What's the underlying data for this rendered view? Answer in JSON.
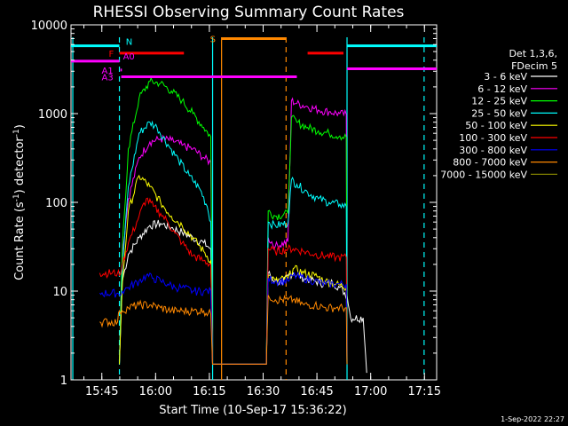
{
  "chart_data": {
    "type": "line",
    "title": "RHESSI Observing Summary Count Rates",
    "xlabel": "Start Time (10-Sep-17 15:36:22)",
    "ylabel": "Count Rate (s⁻¹ detector⁻¹)",
    "ylabel_main": "Count Rate (s",
    "ylabel_mid": ") detector",
    "ylabel_end": ")",
    "ylabel_exp": "-1",
    "x_unit": "minutes after 15:36:22",
    "xlim": [
      0,
      102
    ],
    "ylim": [
      1,
      10000
    ],
    "yscale": "log",
    "x_ticks": [
      {
        "label": "15:45",
        "value": 8.6
      },
      {
        "label": "16:00",
        "value": 23.6
      },
      {
        "label": "16:15",
        "value": 38.6
      },
      {
        "label": "16:30",
        "value": 53.6
      },
      {
        "label": "16:45",
        "value": 68.6
      },
      {
        "label": "17:00",
        "value": 83.6
      },
      {
        "label": "17:15",
        "value": 98.6
      }
    ],
    "y_ticks": [
      {
        "label": "1",
        "value": 1
      },
      {
        "label": "10",
        "value": 10
      },
      {
        "label": "100",
        "value": 100
      },
      {
        "label": "1000",
        "value": 1000
      },
      {
        "label": "10000",
        "value": 10000
      }
    ],
    "legend": {
      "header1": "Det 1,3,6,",
      "header2": "FDecim 5",
      "position": "right"
    },
    "series": [
      {
        "name": "3 - 6 keV",
        "color": "#ffffff",
        "points": [
          [
            13.5,
            1.5
          ],
          [
            14.3,
            13
          ],
          [
            16,
            26
          ],
          [
            19,
            40
          ],
          [
            22,
            55
          ],
          [
            25,
            58
          ],
          [
            28,
            52
          ],
          [
            31,
            46
          ],
          [
            34,
            40
          ],
          [
            37,
            35
          ],
          [
            39,
            30
          ],
          [
            39.5,
            1.5
          ],
          [
            54.5,
            1.5
          ],
          [
            55,
            16
          ],
          [
            57,
            13
          ],
          [
            59,
            12
          ],
          [
            60.5,
            15
          ],
          [
            62,
            16
          ],
          [
            65,
            14
          ],
          [
            68,
            13
          ],
          [
            71,
            12
          ],
          [
            73,
            12.5
          ],
          [
            75,
            11
          ],
          [
            77,
            9
          ],
          [
            78,
            5
          ],
          [
            81.5,
            5
          ],
          [
            82.5,
            1.2
          ]
        ]
      },
      {
        "name": "6 - 12 keV",
        "color": "#ff00ff",
        "points": [
          [
            13.5,
            1.5
          ],
          [
            14.3,
            26
          ],
          [
            16,
            110
          ],
          [
            19,
            320
          ],
          [
            22,
            480
          ],
          [
            25,
            520
          ],
          [
            28,
            500
          ],
          [
            31,
            440
          ],
          [
            34,
            400
          ],
          [
            37,
            320
          ],
          [
            39,
            280
          ],
          [
            39.5,
            1.5
          ],
          [
            54.5,
            1.5
          ],
          [
            55,
            40
          ],
          [
            57,
            32
          ],
          [
            60.5,
            36
          ],
          [
            61.5,
            1400
          ],
          [
            63,
            1300
          ],
          [
            66,
            1200
          ],
          [
            69,
            1100
          ],
          [
            72,
            1050
          ],
          [
            75,
            1000
          ],
          [
            76.8,
            980
          ],
          [
            77,
            1.5
          ]
        ]
      },
      {
        "name": "12 - 25 keV",
        "color": "#00ff00",
        "points": [
          [
            13.5,
            1.5
          ],
          [
            14.3,
            30
          ],
          [
            16,
            400
          ],
          [
            19,
            1500
          ],
          [
            22,
            2300
          ],
          [
            25,
            2200
          ],
          [
            28,
            1800
          ],
          [
            31,
            1400
          ],
          [
            34,
            1000
          ],
          [
            37,
            700
          ],
          [
            39,
            550
          ],
          [
            39.5,
            1.5
          ],
          [
            54.5,
            1.5
          ],
          [
            55,
            80
          ],
          [
            57,
            70
          ],
          [
            60.5,
            75
          ],
          [
            61.5,
            900
          ],
          [
            63,
            800
          ],
          [
            66,
            700
          ],
          [
            69,
            640
          ],
          [
            72,
            600
          ],
          [
            75,
            560
          ],
          [
            76.8,
            540
          ],
          [
            77,
            1.5
          ]
        ]
      },
      {
        "name": "25 - 50 keV",
        "color": "#00ffff",
        "points": [
          [
            13.5,
            1.5
          ],
          [
            14.3,
            18
          ],
          [
            16,
            150
          ],
          [
            19,
            600
          ],
          [
            22,
            800
          ],
          [
            24,
            700
          ],
          [
            27,
            450
          ],
          [
            30,
            300
          ],
          [
            33,
            200
          ],
          [
            36,
            140
          ],
          [
            38,
            90
          ],
          [
            39,
            60
          ],
          [
            39.5,
            1.5
          ],
          [
            54.5,
            1.5
          ],
          [
            55,
            60
          ],
          [
            57,
            55
          ],
          [
            60.5,
            58
          ],
          [
            61.5,
            180
          ],
          [
            63,
            160
          ],
          [
            66,
            130
          ],
          [
            69,
            110
          ],
          [
            72,
            100
          ],
          [
            75,
            95
          ],
          [
            76.8,
            90
          ],
          [
            77,
            1.5
          ]
        ]
      },
      {
        "name": "50 - 100 keV",
        "color": "#ffff00",
        "points": [
          [
            13.5,
            1.5
          ],
          [
            14.3,
            12
          ],
          [
            16,
            80
          ],
          [
            19,
            200
          ],
          [
            22,
            150
          ],
          [
            25,
            100
          ],
          [
            28,
            70
          ],
          [
            31,
            55
          ],
          [
            34,
            40
          ],
          [
            37,
            28
          ],
          [
            39,
            22
          ],
          [
            39.5,
            1.5
          ],
          [
            54.5,
            1.5
          ],
          [
            55,
            15
          ],
          [
            57,
            13
          ],
          [
            60.5,
            14
          ],
          [
            62,
            18
          ],
          [
            65,
            16
          ],
          [
            68,
            15
          ],
          [
            71,
            13
          ],
          [
            74,
            12
          ],
          [
            76.8,
            11
          ],
          [
            77,
            1.5
          ]
        ]
      },
      {
        "name": "100 - 300 keV",
        "color": "#ff0000",
        "points": [
          [
            8,
            16
          ],
          [
            13,
            16
          ],
          [
            13.5,
            15
          ],
          [
            14.3,
            20
          ],
          [
            16,
            35
          ],
          [
            19,
            70
          ],
          [
            21,
            110
          ],
          [
            23,
            90
          ],
          [
            25,
            75
          ],
          [
            27,
            60
          ],
          [
            29,
            45
          ],
          [
            31,
            35
          ],
          [
            34,
            25
          ],
          [
            37,
            22
          ],
          [
            39,
            20
          ],
          [
            39.5,
            1.5
          ],
          [
            54.5,
            1.5
          ],
          [
            55,
            30
          ],
          [
            57,
            28
          ],
          [
            60.5,
            30
          ],
          [
            62,
            30
          ],
          [
            65,
            28
          ],
          [
            68,
            26
          ],
          [
            71,
            25
          ],
          [
            74,
            24
          ],
          [
            76.8,
            24
          ],
          [
            77,
            1.5
          ]
        ]
      },
      {
        "name": "300 - 800 keV",
        "color": "#0000ff",
        "points": [
          [
            8,
            9.5
          ],
          [
            13,
            9.5
          ],
          [
            13.5,
            9
          ],
          [
            14.3,
            10
          ],
          [
            16,
            11
          ],
          [
            19,
            13
          ],
          [
            21,
            15
          ],
          [
            23,
            14
          ],
          [
            25,
            13
          ],
          [
            27,
            12
          ],
          [
            29,
            11
          ],
          [
            31,
            11
          ],
          [
            34,
            10
          ],
          [
            37,
            10
          ],
          [
            39,
            10
          ],
          [
            39.5,
            1.5
          ],
          [
            54.5,
            1.5
          ],
          [
            55,
            14
          ],
          [
            57,
            13
          ],
          [
            60.5,
            13
          ],
          [
            62,
            15
          ],
          [
            65,
            14
          ],
          [
            68,
            13
          ],
          [
            71,
            12
          ],
          [
            74,
            12
          ],
          [
            76.8,
            12
          ],
          [
            77,
            1.5
          ]
        ]
      },
      {
        "name": "800 - 7000 keV",
        "color": "#ff8800",
        "points": [
          [
            8,
            4.5
          ],
          [
            13,
            4.5
          ],
          [
            13.5,
            6
          ],
          [
            14.3,
            6
          ],
          [
            16,
            6.5
          ],
          [
            19,
            7
          ],
          [
            22,
            7
          ],
          [
            25,
            6.5
          ],
          [
            28,
            6
          ],
          [
            31,
            6
          ],
          [
            34,
            6
          ],
          [
            37,
            6
          ],
          [
            39,
            5.5
          ],
          [
            39.5,
            1.5
          ],
          [
            54.5,
            1.5
          ],
          [
            55,
            9
          ],
          [
            57,
            8
          ],
          [
            60.5,
            8
          ],
          [
            62,
            8
          ],
          [
            65,
            7
          ],
          [
            68,
            7
          ],
          [
            71,
            6.5
          ],
          [
            74,
            6.5
          ],
          [
            76.8,
            6.5
          ],
          [
            77,
            1.5
          ]
        ]
      },
      {
        "name": "7000 - 15000 keV",
        "color": "#808000",
        "points": []
      }
    ],
    "flags": [
      {
        "label": "N",
        "color": "#00ffff",
        "segments": [
          [
            0,
            13.5,
            5800
          ],
          [
            77,
            102,
            5800
          ]
        ]
      },
      {
        "label": "F",
        "color": "#ff0000",
        "segments": [
          [
            13.5,
            31.5,
            4800
          ],
          [
            66,
            76,
            4800
          ]
        ]
      },
      {
        "label": "A0",
        "color": "#ff00ff",
        "segments": [
          [
            0,
            13.5,
            3900
          ],
          [
            77,
            102,
            3200
          ]
        ]
      },
      {
        "label": "A1",
        "color": "#ff00ff",
        "segments": [
          [
            13.8,
            14.2,
            3100
          ]
        ]
      },
      {
        "label": "A3",
        "color": "#ff00ff",
        "segments": [
          [
            14,
            63,
            2600
          ]
        ]
      },
      {
        "label": "S",
        "color": "#ff8800",
        "segments": [
          [
            42,
            60,
            7000
          ]
        ]
      }
    ],
    "vlines": [
      {
        "x": 13.5,
        "color": "#00ffff",
        "style": "dashed"
      },
      {
        "x": 39.5,
        "color": "#00ffff",
        "style": "solid"
      },
      {
        "x": 42,
        "color": "#ff8800",
        "style": "solid"
      },
      {
        "x": 60,
        "color": "#ff8800",
        "style": "dashed"
      },
      {
        "x": 77,
        "color": "#00ffff",
        "style": "solid"
      },
      {
        "x": 98.5,
        "color": "#00ffff",
        "style": "dashed"
      },
      {
        "x": 0.5,
        "color": "#00ffff",
        "style": "solid"
      }
    ]
  },
  "timestamp": "1-Sep-2022 22:27"
}
